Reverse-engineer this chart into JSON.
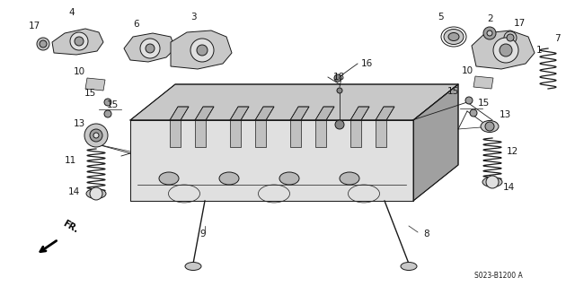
{
  "bg_color": "#ffffff",
  "fig_width": 6.4,
  "fig_height": 3.19,
  "dpi": 100,
  "part_code": "S023-B1200 A",
  "fr_label": "FR.",
  "line_color": "#1a1a1a",
  "fill_light": "#e0e0e0",
  "fill_mid": "#c8c8c8",
  "fill_dark": "#a0a0a0"
}
